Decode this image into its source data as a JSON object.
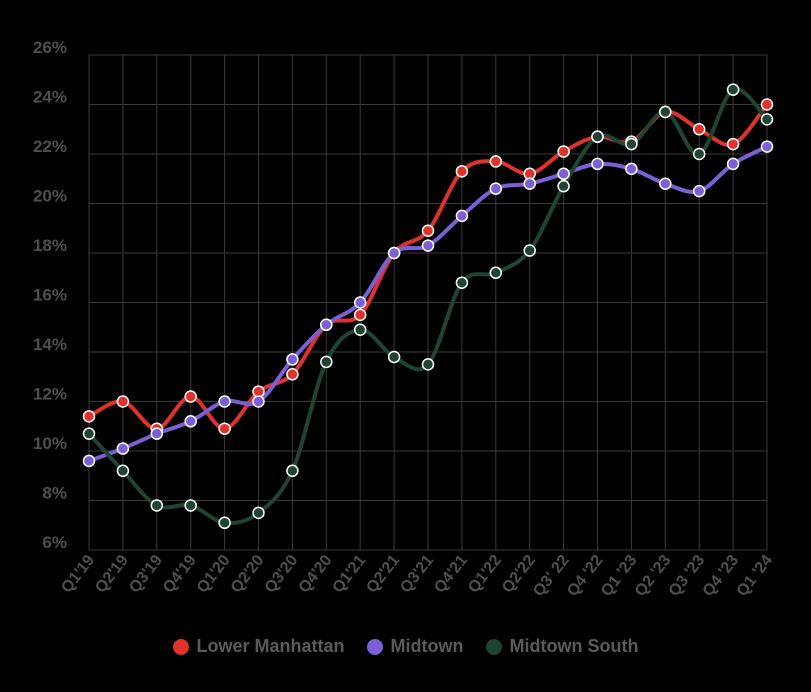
{
  "chart_data": {
    "type": "line",
    "categories": [
      "Q1'19",
      "Q2'19",
      "Q3'19",
      "Q4'19",
      "Q1'20",
      "Q2'20",
      "Q3'20",
      "Q4'20",
      "Q1'21",
      "Q2'21",
      "Q3'21",
      "Q4'21",
      "Q1'22",
      "Q2'22",
      "Q3' 22",
      "Q4 '22",
      "Q1 '23",
      "Q2 '23",
      "Q3 '23",
      "Q4 '23",
      "Q1 '24"
    ],
    "y_ticks": [
      "6%",
      "8%",
      "10%",
      "12%",
      "14%",
      "16%",
      "18%",
      "20%",
      "22%",
      "24%",
      "26%"
    ],
    "ylim": [
      6,
      26
    ],
    "grid": true,
    "legend_position": "bottom",
    "series": [
      {
        "name": "Lower Manhattan",
        "color": "#e0312a",
        "values": [
          11.4,
          12.0,
          10.9,
          12.2,
          10.9,
          12.4,
          13.1,
          15.1,
          15.5,
          18.0,
          18.9,
          21.3,
          21.7,
          21.2,
          22.1,
          22.7,
          22.5,
          23.7,
          23.0,
          22.4,
          24.0
        ]
      },
      {
        "name": "Midtown",
        "color": "#7b5fd6",
        "values": [
          9.6,
          10.1,
          10.7,
          11.2,
          12.0,
          12.0,
          13.7,
          15.1,
          16.0,
          18.0,
          18.3,
          19.5,
          20.6,
          20.8,
          21.2,
          21.6,
          21.4,
          20.8,
          20.5,
          21.6,
          22.3
        ]
      },
      {
        "name": "Midtown South",
        "color": "#1e4432",
        "values": [
          10.7,
          9.2,
          7.8,
          7.8,
          7.1,
          7.5,
          9.2,
          13.6,
          14.9,
          13.8,
          13.5,
          16.8,
          17.2,
          18.1,
          20.7,
          22.7,
          22.4,
          23.7,
          22.0,
          24.6,
          23.4
        ]
      }
    ]
  }
}
